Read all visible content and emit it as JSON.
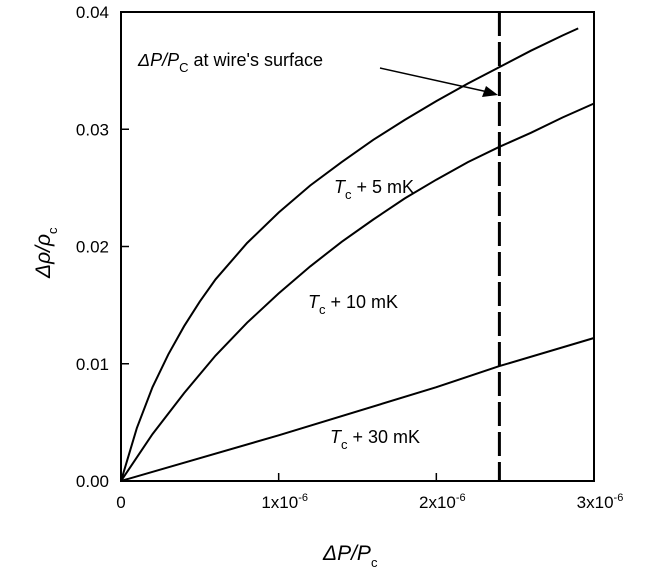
{
  "chart_data": {
    "type": "line",
    "title": "",
    "xlabel": {
      "main": "ΔP/P",
      "sub": "c"
    },
    "ylabel": {
      "main": "Δρ/ρ",
      "sub": "c"
    },
    "xlim": [
      0,
      3e-06
    ],
    "ylim": [
      0,
      0.04
    ],
    "grid": false,
    "x_ticks": [
      {
        "value": 0,
        "label": "0",
        "exp": ""
      },
      {
        "value": 1e-06,
        "label": "1x10",
        "exp": "-6"
      },
      {
        "value": 2e-06,
        "label": "2x10",
        "exp": "-6"
      },
      {
        "value": 3e-06,
        "label": "3x10",
        "exp": "-6"
      }
    ],
    "y_ticks": [
      {
        "value": 0.0,
        "label": "0.00"
      },
      {
        "value": 0.01,
        "label": "0.01"
      },
      {
        "value": 0.02,
        "label": "0.02"
      },
      {
        "value": 0.03,
        "label": "0.03"
      },
      {
        "value": 0.04,
        "label": "0.04"
      }
    ],
    "series": [
      {
        "label_main": "T",
        "label_sub": "c",
        "label_rest": " + 5 mK",
        "x": [
          0,
          1e-07,
          2e-07,
          3e-07,
          4e-07,
          5e-07,
          6e-07,
          8e-07,
          1e-06,
          1.2e-06,
          1.4e-06,
          1.6e-06,
          1.8e-06,
          2e-06,
          2.2e-06,
          2.4e-06,
          2.6e-06,
          2.8e-06,
          2.9e-06
        ],
        "values": [
          0,
          0.0045,
          0.008,
          0.0108,
          0.0132,
          0.0153,
          0.0172,
          0.0203,
          0.0229,
          0.0252,
          0.0272,
          0.0291,
          0.0308,
          0.0324,
          0.0339,
          0.0353,
          0.0367,
          0.038,
          0.0386
        ]
      },
      {
        "label_main": "T",
        "label_sub": "c",
        "label_rest": " + 10 mK",
        "x": [
          0,
          2e-07,
          4e-07,
          6e-07,
          8e-07,
          1e-06,
          1.2e-06,
          1.4e-06,
          1.6e-06,
          1.8e-06,
          2e-06,
          2.2e-06,
          2.4e-06,
          2.6e-06,
          2.8e-06,
          3e-06
        ],
        "values": [
          0,
          0.004,
          0.0075,
          0.0107,
          0.0135,
          0.016,
          0.0183,
          0.0204,
          0.0223,
          0.0241,
          0.0257,
          0.0272,
          0.0285,
          0.0297,
          0.031,
          0.0322
        ]
      },
      {
        "label_main": "T",
        "label_sub": "c",
        "label_rest": " + 30 mK",
        "x": [
          0,
          1e-06,
          2e-06,
          2.4e-06,
          3e-06
        ],
        "values": [
          0,
          0.0039,
          0.008,
          0.0098,
          0.0122
        ]
      }
    ],
    "vertical_line": {
      "x": 2.4e-06,
      "style": "dashed"
    },
    "annotation": {
      "prefix": "ΔP/P",
      "sub": "C",
      "rest": " at wire's surface"
    }
  }
}
